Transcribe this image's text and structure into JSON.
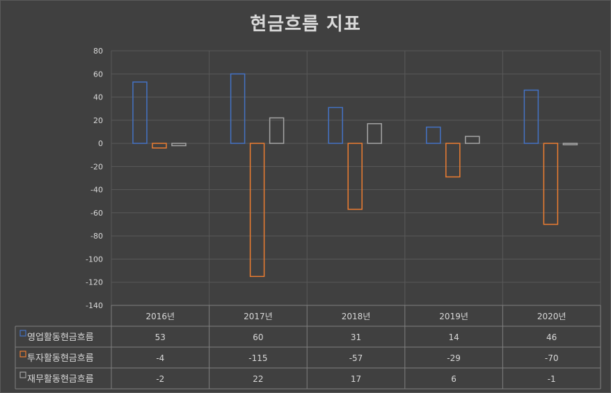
{
  "chart_data": {
    "type": "bar",
    "title": "현금흐름 지표",
    "categories": [
      "2016년",
      "2017년",
      "2018년",
      "2019년",
      "2020년"
    ],
    "series": [
      {
        "name": "영업활동현금흐름",
        "color": "#4472c4",
        "values": [
          53,
          60,
          31,
          14,
          46
        ]
      },
      {
        "name": "투자활동현금흐름",
        "color": "#ed7d31",
        "values": [
          -4,
          -115,
          -57,
          -29,
          -70
        ]
      },
      {
        "name": "재무활동현금흐름",
        "color": "#a5a5a5",
        "values": [
          -2,
          22,
          17,
          6,
          -1
        ]
      }
    ],
    "yticks": [
      "80",
      "60",
      "40",
      "20",
      "0",
      "-20",
      "-40",
      "-60",
      "-80",
      "-100",
      "-120",
      "-140"
    ],
    "ylim": [
      -140,
      80
    ],
    "grid": true,
    "legend": "data-table"
  }
}
